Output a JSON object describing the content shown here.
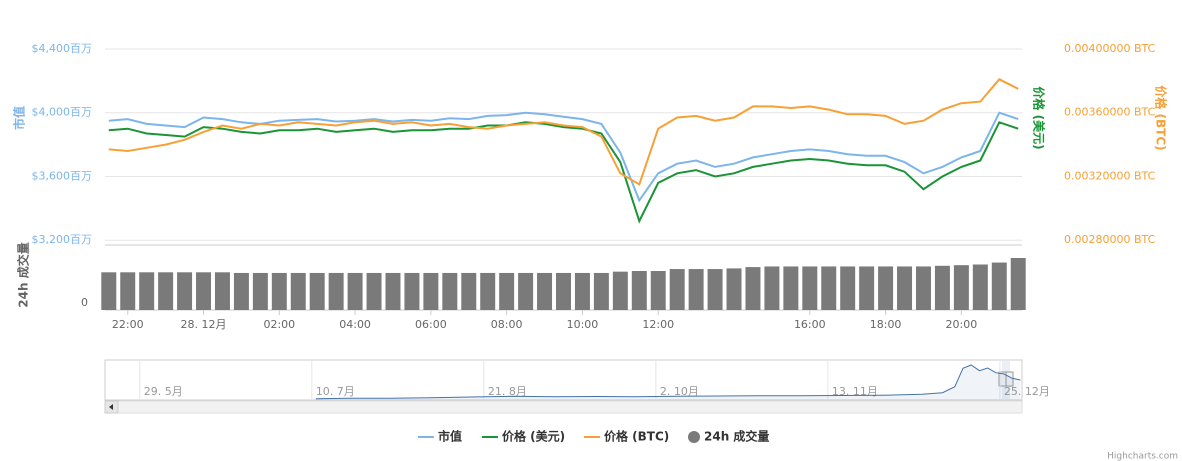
{
  "chart_data": {
    "type": "line",
    "x": [
      -2.5,
      -2,
      -1.5,
      -1,
      -0.5,
      0,
      0.5,
      1,
      1.5,
      2,
      2.5,
      3,
      3.5,
      4,
      4.5,
      5,
      5.5,
      6,
      6.5,
      7,
      7.5,
      8,
      8.5,
      9,
      9.5,
      10,
      10.5,
      11,
      11.5,
      12,
      12.5,
      13,
      13.5,
      14,
      14.5,
      15,
      15.5,
      16,
      16.5,
      17,
      17.5,
      18,
      18.5,
      19,
      19.5,
      20,
      20.5,
      21,
      21.5
    ],
    "xlim": [
      -2.6,
      21.6
    ],
    "xticks": [
      {
        "value": -2,
        "label": "22:00"
      },
      {
        "value": 0,
        "label": "28. 12月"
      },
      {
        "value": 2,
        "label": "02:00"
      },
      {
        "value": 4,
        "label": "04:00"
      },
      {
        "value": 6,
        "label": "06:00"
      },
      {
        "value": 8,
        "label": "08:00"
      },
      {
        "value": 10,
        "label": "10:00"
      },
      {
        "value": 12,
        "label": "12:00"
      },
      {
        "value": 16,
        "label": "16:00"
      },
      {
        "value": 18,
        "label": "18:00"
      },
      {
        "value": 20,
        "label": "20:00"
      }
    ],
    "ylim": [
      3170,
      4400
    ],
    "yticks": [
      {
        "value": 4400,
        "label": "$4,400百万"
      },
      {
        "value": 4000,
        "label": "$4,000百万"
      },
      {
        "value": 3600,
        "label": "$3,600百万"
      },
      {
        "value": 3200,
        "label": "$3,200百万"
      }
    ],
    "y2lim": [
      0.00277,
      0.004
    ],
    "y2ticks": [
      {
        "value": 0.004,
        "label": "0.00400000 BTC"
      },
      {
        "value": 0.0036,
        "label": "0.00360000 BTC"
      },
      {
        "value": 0.0032,
        "label": "0.00320000 BTC"
      },
      {
        "value": 0.0028,
        "label": "0.00280000 BTC"
      }
    ],
    "y3lim": [
      0.317,
      0.44
    ],
    "series": [
      {
        "name": "市值",
        "color": "#7cb5ec",
        "axis": "y",
        "values": [
          3950,
          3960,
          3930,
          3920,
          3910,
          3970,
          3960,
          3940,
          3930,
          3950,
          3955,
          3960,
          3945,
          3950,
          3960,
          3945,
          3955,
          3950,
          3965,
          3960,
          3980,
          3985,
          4000,
          3990,
          3975,
          3960,
          3930,
          3750,
          3450,
          3620,
          3680,
          3700,
          3660,
          3680,
          3720,
          3740,
          3760,
          3770,
          3760,
          3740,
          3730,
          3730,
          3690,
          3620,
          3660,
          3720,
          3760,
          4000,
          3960
        ]
      },
      {
        "name": "价格 (美元)",
        "color": "#1a9436",
        "axis": "y3",
        "values": [
          0.389,
          0.39,
          0.387,
          0.386,
          0.385,
          0.391,
          0.39,
          0.388,
          0.387,
          0.389,
          0.389,
          0.39,
          0.388,
          0.389,
          0.39,
          0.388,
          0.389,
          0.389,
          0.39,
          0.39,
          0.392,
          0.392,
          0.394,
          0.393,
          0.391,
          0.39,
          0.387,
          0.369,
          0.332,
          0.356,
          0.362,
          0.364,
          0.36,
          0.362,
          0.366,
          0.368,
          0.37,
          0.371,
          0.37,
          0.368,
          0.367,
          0.367,
          0.363,
          0.352,
          0.36,
          0.366,
          0.37,
          0.394,
          0.39
        ]
      },
      {
        "name": "价格 (BTC)",
        "color": "#f7a035",
        "axis": "y2",
        "values": [
          0.00337,
          0.00336,
          0.00338,
          0.0034,
          0.00343,
          0.00348,
          0.00352,
          0.0035,
          0.00353,
          0.00352,
          0.00354,
          0.00353,
          0.00352,
          0.00354,
          0.00355,
          0.00353,
          0.00354,
          0.00352,
          0.00353,
          0.00351,
          0.0035,
          0.00352,
          0.00353,
          0.00354,
          0.00352,
          0.00351,
          0.00345,
          0.00322,
          0.00315,
          0.0035,
          0.00357,
          0.00358,
          0.00355,
          0.00357,
          0.00364,
          0.00364,
          0.00363,
          0.00364,
          0.00362,
          0.00359,
          0.00359,
          0.00358,
          0.00353,
          0.00355,
          0.00362,
          0.00366,
          0.00367,
          0.00381,
          0.00375
        ]
      }
    ],
    "volume": {
      "name": "24h 成交量",
      "color": "#7a7a7a",
      "ylim": [
        0,
        100
      ],
      "yticks": [
        0
      ],
      "values": [
        58,
        58,
        58,
        58,
        58,
        58,
        58,
        57,
        57,
        57,
        57,
        57,
        57,
        57,
        57,
        57,
        57,
        57,
        57,
        57,
        57,
        57,
        57,
        57,
        57,
        57,
        57,
        59,
        60,
        60,
        63,
        63,
        63,
        64,
        66,
        67,
        67,
        67,
        67,
        67,
        67,
        67,
        67,
        67,
        68,
        69,
        70,
        73,
        80
      ]
    },
    "navigator": {
      "color": "#4572a7",
      "x": [
        192,
        200,
        210,
        220,
        230,
        240,
        250,
        260,
        270,
        280,
        290,
        300,
        310,
        320,
        330,
        340,
        345,
        348,
        350,
        352,
        354,
        356,
        358,
        360,
        362,
        364
      ],
      "values": [
        400,
        500,
        550,
        700,
        900,
        1100,
        1000,
        1050,
        1000,
        1100,
        1200,
        1250,
        1300,
        1350,
        1400,
        1700,
        2200,
        4000,
        9500,
        10500,
        8800,
        9600,
        8200,
        7800,
        6500,
        6000
      ],
      "xlim": [
        140.5,
        364.4
      ],
      "ylim": [
        0,
        12000
      ],
      "xticks": [
        {
          "value": 149,
          "label": "29. 5月"
        },
        {
          "value": 191,
          "label": "10. 7月"
        },
        {
          "value": 233,
          "label": "21. 8月"
        },
        {
          "value": 275,
          "label": "2. 10月"
        },
        {
          "value": 317,
          "label": "13. 11月"
        },
        {
          "value": 359,
          "label": "25. 12月"
        }
      ]
    },
    "credit": "Highcharts.com"
  }
}
